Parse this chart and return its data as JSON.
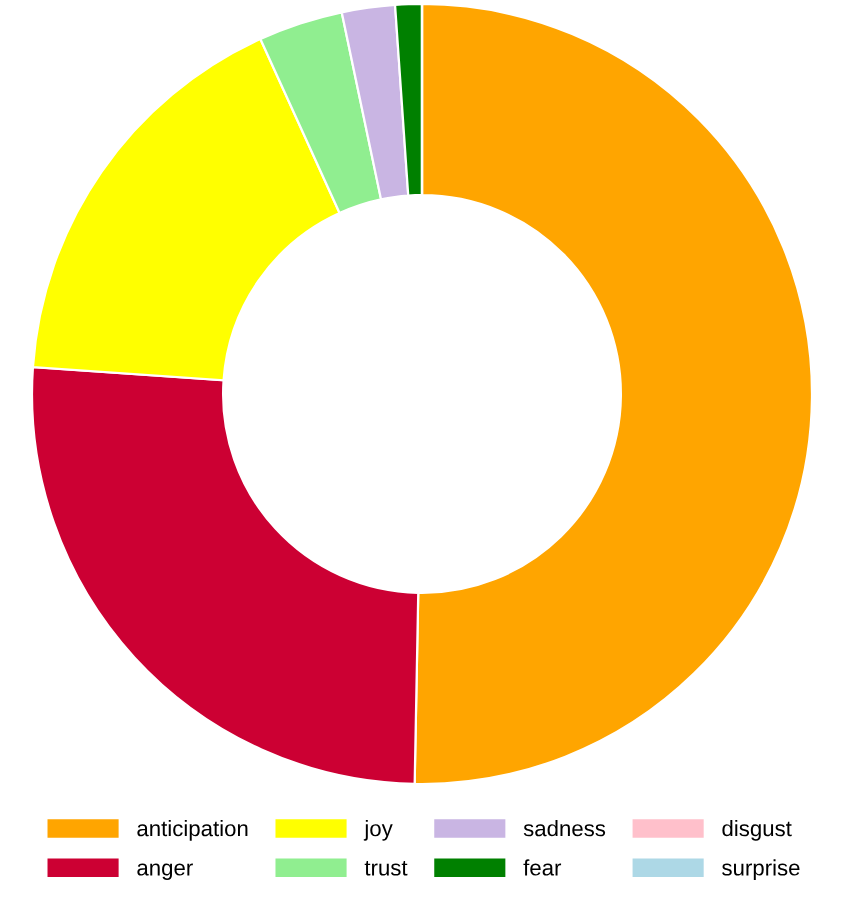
{
  "chart_data": {
    "type": "donut",
    "categories": [
      "anticipation",
      "anger",
      "joy",
      "trust",
      "sadness",
      "fear",
      "disgust",
      "surprise"
    ],
    "values": [
      50.3,
      25.8,
      17.1,
      3.5,
      2.2,
      1.1,
      0,
      0
    ],
    "colors": [
      "#ffa500",
      "#cc0033",
      "#ffff00",
      "#90ee90",
      "#c9b5e3",
      "#008000",
      "#ffc0cb",
      "#add8e6"
    ],
    "legend": "bottom"
  }
}
